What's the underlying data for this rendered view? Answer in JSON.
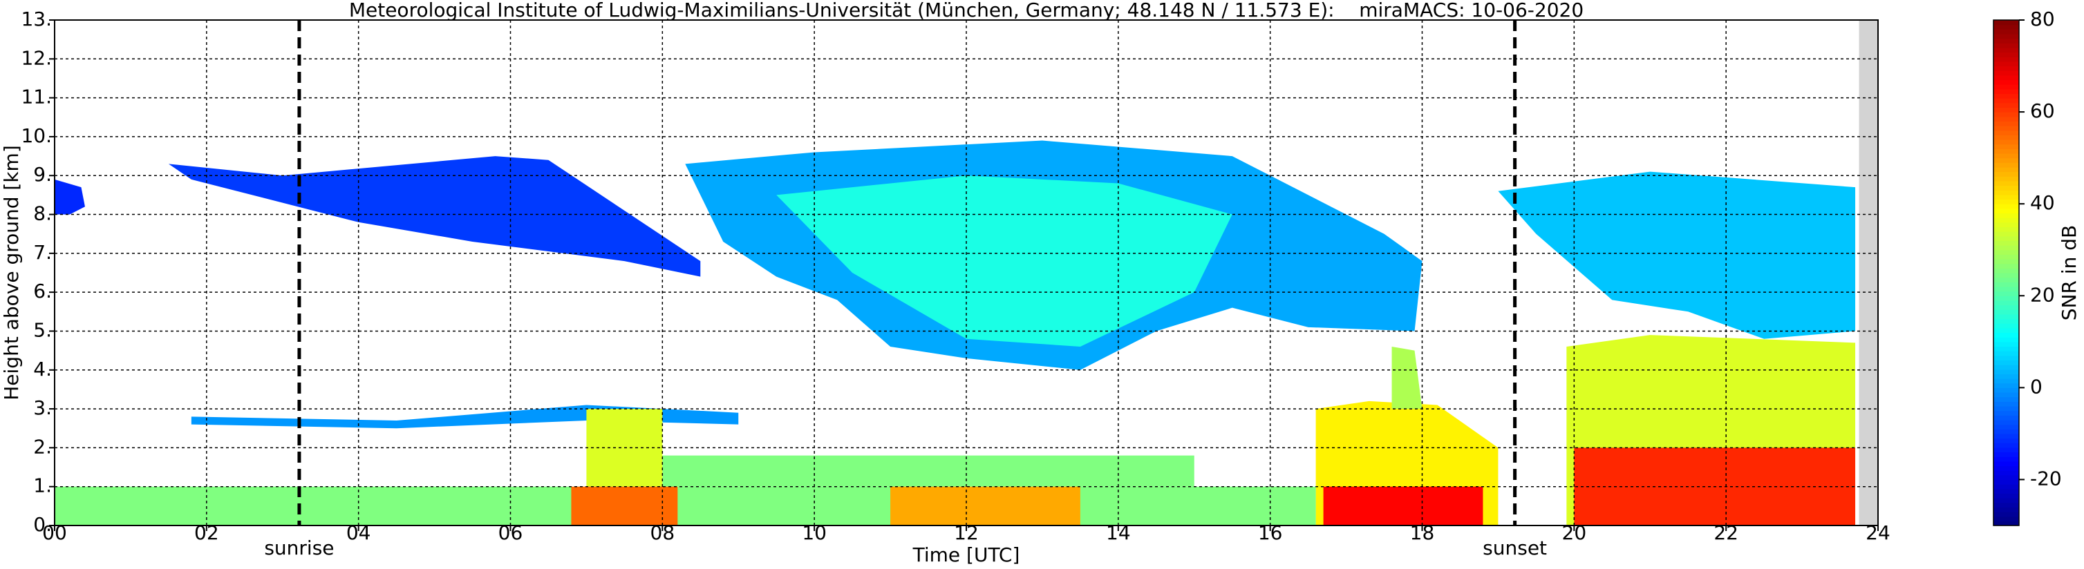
{
  "chart_data": {
    "type": "heatmap",
    "title": "Meteorological Institute of Ludwig-Maximilians-Universität (München, Germany; 48.148 N / 11.573 E):    miraMACS: 10-06-2020",
    "xlabel": "Time [UTC]",
    "ylabel": "Height above ground [km]",
    "xlim": [
      0,
      24
    ],
    "ylim": [
      0,
      13
    ],
    "xticks": [
      {
        "value": 0,
        "label": "00"
      },
      {
        "value": 2,
        "label": "02"
      },
      {
        "value": 4,
        "label": "04"
      },
      {
        "value": 6,
        "label": "06"
      },
      {
        "value": 8,
        "label": "08"
      },
      10,
      12,
      14,
      16,
      18,
      20,
      22,
      24
    ],
    "yticks": [
      {
        "value": 0,
        "label": "0."
      },
      {
        "value": 1,
        "label": "1."
      },
      {
        "value": 2,
        "label": "2."
      },
      {
        "value": 3,
        "label": "3."
      },
      {
        "value": 4,
        "label": "4."
      },
      {
        "value": 5,
        "label": "5."
      },
      {
        "value": 6,
        "label": "6."
      },
      {
        "value": 7,
        "label": "7."
      },
      {
        "value": 8,
        "label": "8."
      },
      {
        "value": 9,
        "label": "9."
      },
      {
        "value": 10,
        "label": "10."
      },
      {
        "value": 11,
        "label": "11."
      },
      {
        "value": 12,
        "label": "12."
      },
      {
        "value": 13,
        "label": "13."
      }
    ],
    "grid": true,
    "colorbar": {
      "label": "SNR in dB",
      "clim": [
        -30,
        80
      ],
      "ticks": [
        -20,
        0,
        20,
        40,
        60,
        80
      ],
      "colormap": "jet"
    },
    "annotations": [
      {
        "text": "sunrise",
        "x": 3.22
      },
      {
        "text": "sunset",
        "x": 19.22
      }
    ],
    "nodata": {
      "x": [
        23.75,
        24
      ],
      "color": "#d3d3d3"
    },
    "regions": [
      {
        "x": [
          0,
          0.35,
          0.4,
          0.2,
          0
        ],
        "y": [
          8.9,
          8.7,
          8.2,
          8.0,
          8.0
        ],
        "snr": -12
      },
      {
        "x": [
          1.5,
          3,
          5.8,
          6.5,
          8.5,
          8.5,
          7.5,
          5.5,
          4,
          3,
          1.8
        ],
        "y": [
          9.3,
          9.0,
          9.5,
          9.4,
          6.8,
          6.4,
          6.8,
          7.3,
          7.8,
          8.3,
          8.9
        ],
        "snr": -10
      },
      {
        "x": [
          8.3,
          10,
          13,
          15.5,
          16.5,
          17.5,
          18,
          17.9,
          16.5,
          15.5,
          14.5,
          13.5,
          12,
          11,
          10.3,
          9.5,
          8.8
        ],
        "y": [
          9.3,
          9.6,
          9.9,
          9.5,
          8.5,
          7.5,
          6.8,
          5.0,
          5.1,
          5.6,
          5.0,
          4.0,
          4.3,
          4.6,
          5.8,
          6.4,
          7.3
        ],
        "snr": 2
      },
      {
        "x": [
          9.5,
          12,
          14,
          15.5,
          15,
          13.5,
          12,
          10.5
        ],
        "y": [
          8.5,
          9.0,
          8.8,
          8.0,
          6.0,
          4.6,
          4.8,
          6.5
        ],
        "snr": 14
      },
      {
        "x": [
          19,
          21,
          23.7,
          23.7,
          22.5,
          21.5,
          20.5,
          19.5
        ],
        "y": [
          8.6,
          9.1,
          8.7,
          5.0,
          4.8,
          5.5,
          5.8,
          7.5
        ],
        "snr": 5
      },
      {
        "x": [
          19.9,
          21,
          23.7,
          23.7,
          19.9
        ],
        "y": [
          4.6,
          4.9,
          4.7,
          0,
          0
        ],
        "snr": 35
      },
      {
        "x": [
          20,
          23.7,
          23.7,
          20
        ],
        "y": [
          2.0,
          2.0,
          0,
          0
        ],
        "snr": 62
      },
      {
        "x": [
          16.6,
          17.3,
          18.2,
          19,
          19,
          16.6
        ],
        "y": [
          3.0,
          3.2,
          3.1,
          2.0,
          0,
          0
        ],
        "snr": 40
      },
      {
        "x": [
          16.7,
          18.8,
          18.8,
          16.7
        ],
        "y": [
          1.0,
          1.0,
          0,
          0
        ],
        "snr": 66
      },
      {
        "x": [
          17.6,
          17.9,
          18.0,
          17.6
        ],
        "y": [
          4.6,
          4.5,
          3.0,
          3.0
        ],
        "snr": 30
      },
      {
        "x": [
          1.8,
          4.5,
          7,
          9,
          9,
          7,
          4.5,
          1.8
        ],
        "y": [
          2.8,
          2.7,
          3.1,
          2.9,
          2.6,
          2.7,
          2.5,
          2.6
        ],
        "snr": 0
      },
      {
        "x": [
          0,
          16.6,
          16.6,
          0
        ],
        "y": [
          1.0,
          1.0,
          0,
          0
        ],
        "snr": 25
      },
      {
        "x": [
          8,
          15,
          15,
          8
        ],
        "y": [
          1.8,
          1.8,
          1.0,
          1.0
        ],
        "snr": 25
      },
      {
        "x": [
          7,
          8,
          8,
          7
        ],
        "y": [
          3.0,
          3.0,
          1.0,
          1.0
        ],
        "snr": 35
      },
      {
        "x": [
          6.8,
          8.2,
          8.2,
          6.8
        ],
        "y": [
          1.0,
          1.0,
          0,
          0
        ],
        "snr": 55
      },
      {
        "x": [
          11,
          13.5,
          13.5,
          11
        ],
        "y": [
          1.0,
          1.0,
          0,
          0
        ],
        "snr": 48
      }
    ]
  }
}
